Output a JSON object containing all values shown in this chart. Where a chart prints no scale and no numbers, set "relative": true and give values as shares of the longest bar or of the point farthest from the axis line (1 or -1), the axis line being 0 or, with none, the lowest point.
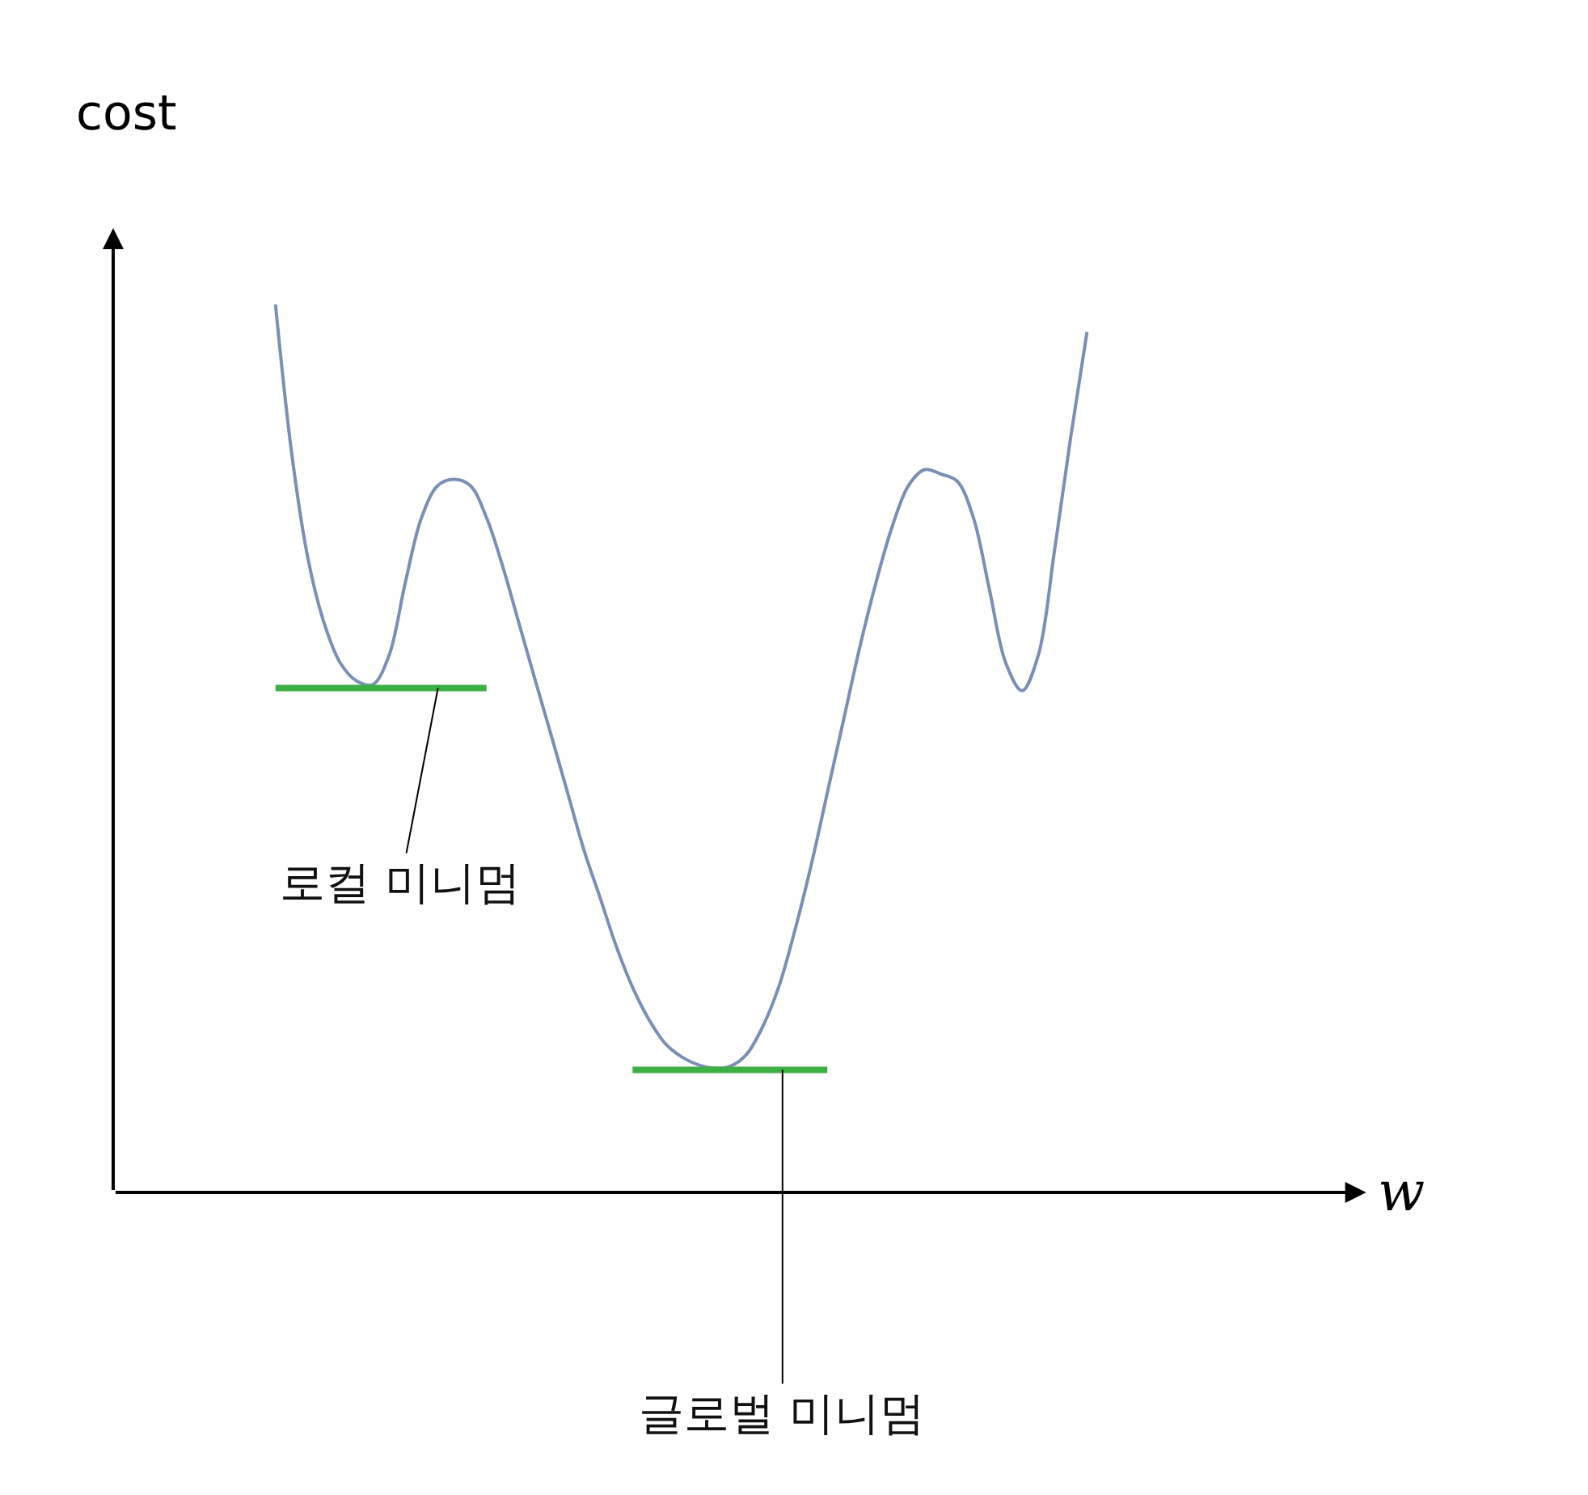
{
  "chart_data": {
    "type": "line",
    "relative": true,
    "ylabel": "cost",
    "marker": "none",
    "categories": [
      null,
      null,
      null,
      null,
      null,
      null,
      null,
      null,
      null,
      null,
      null,
      null,
      null,
      null,
      null,
      null,
      null,
      null,
      null,
      null,
      null,
      null,
      null,
      null,
      null,
      null,
      null,
      null,
      null,
      null,
      null,
      null,
      null,
      null,
      null,
      null,
      null,
      null,
      null,
      null,
      null,
      null,
      null,
      null,
      null,
      null,
      null,
      null,
      null,
      null,
      null
    ],
    "series": [
      {
        "color": "#7b8fb5",
        "values": [
          1.0,
          0.832,
          0.714,
          0.641,
          0.596,
          0.576,
          0.572,
          0.605,
          0.687,
          0.76,
          0.796,
          0.803,
          0.796,
          0.76,
          0.705,
          0.641,
          0.577,
          0.514,
          0.45,
          0.386,
          0.332,
          0.277,
          0.231,
          0.195,
          0.168,
          0.153,
          0.144,
          0.14,
          0.142,
          0.155,
          0.186,
          0.231,
          0.295,
          0.368,
          0.45,
          0.532,
          0.614,
          0.687,
          0.75,
          0.796,
          0.814,
          0.809,
          0.801,
          0.76,
          0.678,
          0.596,
          0.565,
          0.605,
          0.723,
          0.851,
          0.969
        ]
      },
      {
        "color": "#3cb043",
        "values": [
          0.568,
          0.568,
          0.568,
          0.568,
          0.568,
          0.568,
          0.568,
          0.568,
          0.568,
          0.568,
          0.568,
          0.568,
          0.568,
          0.568,
          null,
          null,
          null,
          null,
          null,
          null,
          null,
          null,
          null,
          null,
          null,
          null,
          null,
          null,
          null,
          null,
          null,
          null,
          null,
          null,
          null,
          null,
          null,
          null,
          null,
          null,
          null,
          null,
          null,
          null,
          null,
          null,
          null,
          null,
          null,
          null,
          null
        ]
      },
      {
        "color": "#3cb043",
        "values": [
          null,
          null,
          null,
          null,
          null,
          null,
          null,
          null,
          null,
          null,
          null,
          null,
          null,
          null,
          null,
          null,
          null,
          null,
          null,
          null,
          null,
          null,
          0.138,
          0.138,
          0.138,
          0.138,
          0.138,
          0.138,
          0.138,
          0.138,
          0.138,
          0.138,
          0.138,
          0.138,
          0.138,
          null,
          null,
          null,
          null,
          null,
          null,
          null,
          null,
          null,
          null,
          null,
          null,
          null,
          null,
          null,
          null
        ]
      }
    ],
    "annotations": [
      "로컬 미니멈",
      "글로벌 미니멈",
      "w"
    ]
  }
}
